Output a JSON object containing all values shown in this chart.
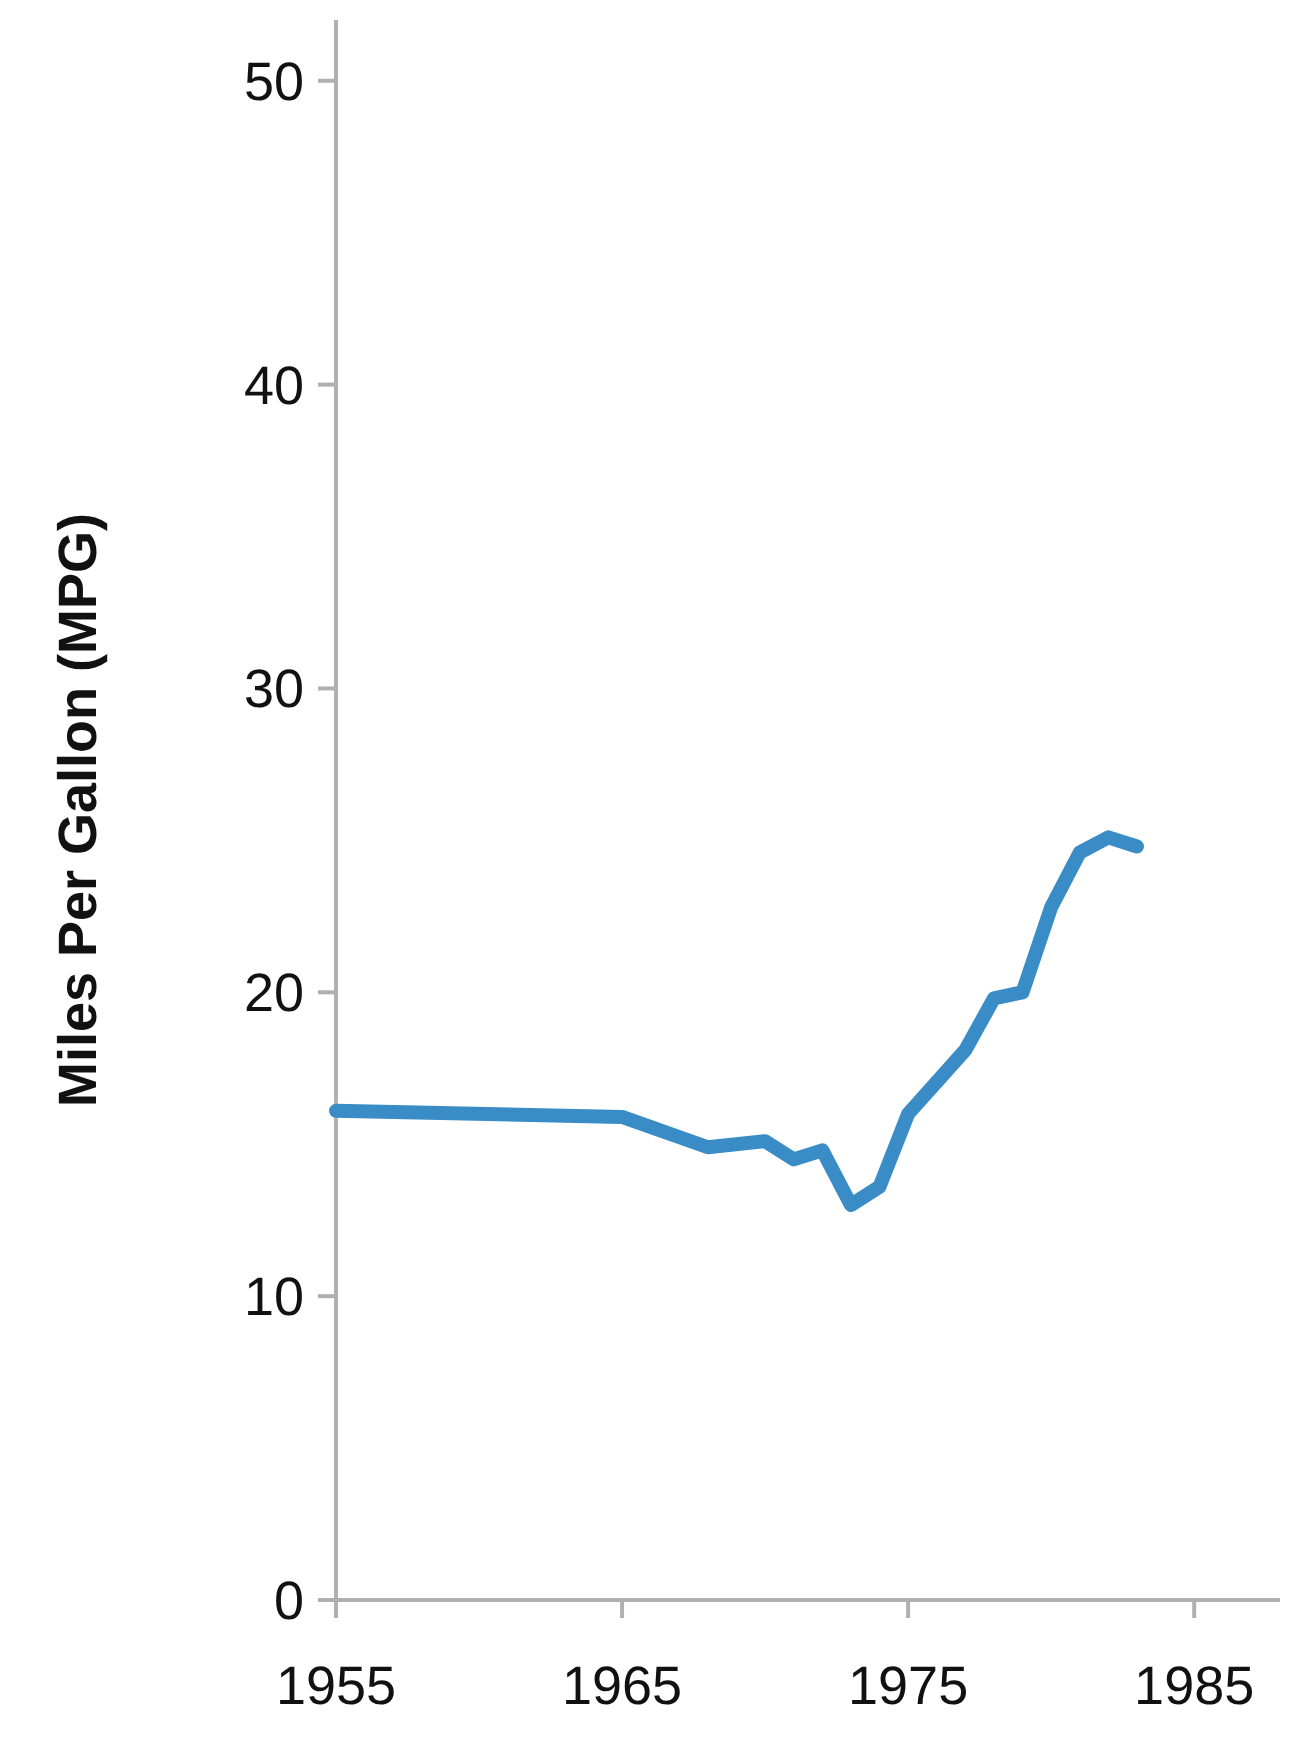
{
  "chart_data": {
    "type": "line",
    "ylabel": "Miles Per Gallon (MPG)",
    "x": [
      1955,
      1965,
      1968,
      1970,
      1971,
      1972,
      1973,
      1974,
      1975,
      1977,
      1978,
      1979,
      1980,
      1981,
      1982,
      1983
    ],
    "series": [
      {
        "color": "#3a8cc6",
        "values": [
          16.1,
          15.9,
          14.9,
          15.1,
          14.5,
          14.8,
          13.0,
          13.6,
          16.0,
          18.1,
          19.8,
          20.0,
          22.8,
          24.6,
          25.1,
          24.8
        ]
      }
    ],
    "xlim": [
      1955,
      1988
    ],
    "xticks": [
      1955,
      1965,
      1975,
      1985
    ],
    "ylim": [
      0,
      52
    ],
    "yticks": [
      0,
      10,
      20,
      30,
      40,
      50
    ],
    "grid": false,
    "marker": "none",
    "line_style": "solid"
  }
}
